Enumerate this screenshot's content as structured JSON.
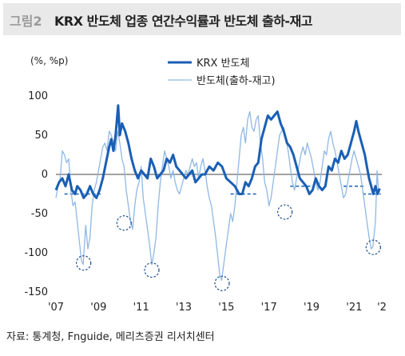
{
  "header": {
    "figure_label": "그림2",
    "title": "KRX 반도체 업종 연간수익률과 반도체 출하-재고"
  },
  "source": "자료: 통계청, Fnguide, 메리츠증권 리서치센터",
  "colors": {
    "series_primary": "#1a5fb4",
    "series_secondary": "#8fb8e6",
    "reference_dash": "#1a5fb4",
    "circle": "#1a4b8c",
    "header_bg": "#e9e9e9"
  },
  "chart_data": {
    "type": "line",
    "unit_label": "(%, %p)",
    "ylim": [
      -150,
      100
    ],
    "yticks": [
      100,
      50,
      0,
      -50,
      -100,
      -150
    ],
    "xlim": [
      2007,
      2022.3
    ],
    "xticks": [
      {
        "value": 2007,
        "label": "'07"
      },
      {
        "value": 2009,
        "label": "'09"
      },
      {
        "value": 2011,
        "label": "'11"
      },
      {
        "value": 2013,
        "label": "'13"
      },
      {
        "value": 2015,
        "label": "'15"
      },
      {
        "value": 2017,
        "label": "'17"
      },
      {
        "value": 2019,
        "label": "'19"
      },
      {
        "value": 2021,
        "label": "'21"
      },
      {
        "value": 2022.3,
        "label": "'2"
      }
    ],
    "legend": {
      "placement": "top-center"
    },
    "series": [
      {
        "name": "KRX 반도체",
        "style": "thick",
        "points": [
          [
            2007.0,
            -20
          ],
          [
            2007.15,
            -10
          ],
          [
            2007.3,
            -5
          ],
          [
            2007.45,
            -15
          ],
          [
            2007.6,
            0
          ],
          [
            2007.75,
            -20
          ],
          [
            2007.9,
            -25
          ],
          [
            2008.0,
            -15
          ],
          [
            2008.15,
            -20
          ],
          [
            2008.3,
            -30
          ],
          [
            2008.45,
            -25
          ],
          [
            2008.6,
            -15
          ],
          [
            2008.75,
            -25
          ],
          [
            2008.9,
            -30
          ],
          [
            2009.05,
            -20
          ],
          [
            2009.2,
            -5
          ],
          [
            2009.35,
            15
          ],
          [
            2009.5,
            35
          ],
          [
            2009.6,
            45
          ],
          [
            2009.7,
            30
          ],
          [
            2009.8,
            50
          ],
          [
            2009.92,
            88
          ],
          [
            2010.0,
            50
          ],
          [
            2010.1,
            65
          ],
          [
            2010.25,
            55
          ],
          [
            2010.4,
            40
          ],
          [
            2010.55,
            20
          ],
          [
            2010.7,
            5
          ],
          [
            2010.85,
            -5
          ],
          [
            2011.0,
            5
          ],
          [
            2011.15,
            0
          ],
          [
            2011.3,
            -5
          ],
          [
            2011.45,
            20
          ],
          [
            2011.6,
            10
          ],
          [
            2011.75,
            -5
          ],
          [
            2011.9,
            0
          ],
          [
            2012.05,
            5
          ],
          [
            2012.2,
            20
          ],
          [
            2012.35,
            15
          ],
          [
            2012.5,
            25
          ],
          [
            2012.65,
            10
          ],
          [
            2012.8,
            5
          ],
          [
            2012.95,
            0
          ],
          [
            2013.1,
            -5
          ],
          [
            2013.25,
            0
          ],
          [
            2013.4,
            5
          ],
          [
            2013.55,
            -10
          ],
          [
            2013.7,
            -5
          ],
          [
            2013.85,
            0
          ],
          [
            2014.0,
            0
          ],
          [
            2014.2,
            10
          ],
          [
            2014.4,
            5
          ],
          [
            2014.6,
            15
          ],
          [
            2014.8,
            10
          ],
          [
            2015.0,
            -5
          ],
          [
            2015.2,
            -10
          ],
          [
            2015.4,
            -15
          ],
          [
            2015.6,
            -25
          ],
          [
            2015.75,
            -25
          ],
          [
            2015.9,
            -10
          ],
          [
            2016.05,
            -15
          ],
          [
            2016.2,
            -5
          ],
          [
            2016.35,
            10
          ],
          [
            2016.5,
            15
          ],
          [
            2016.65,
            45
          ],
          [
            2016.8,
            60
          ],
          [
            2016.95,
            75
          ],
          [
            2017.1,
            70
          ],
          [
            2017.25,
            75
          ],
          [
            2017.4,
            80
          ],
          [
            2017.55,
            65
          ],
          [
            2017.7,
            55
          ],
          [
            2017.85,
            40
          ],
          [
            2018.0,
            35
          ],
          [
            2018.15,
            25
          ],
          [
            2018.3,
            10
          ],
          [
            2018.45,
            -5
          ],
          [
            2018.6,
            -10
          ],
          [
            2018.75,
            -15
          ],
          [
            2018.9,
            -25
          ],
          [
            2019.05,
            -20
          ],
          [
            2019.2,
            -5
          ],
          [
            2019.35,
            -15
          ],
          [
            2019.5,
            -20
          ],
          [
            2019.65,
            -15
          ],
          [
            2019.8,
            10
          ],
          [
            2019.95,
            5
          ],
          [
            2020.1,
            20
          ],
          [
            2020.25,
            15
          ],
          [
            2020.4,
            30
          ],
          [
            2020.55,
            20
          ],
          [
            2020.7,
            25
          ],
          [
            2020.85,
            40
          ],
          [
            2021.0,
            55
          ],
          [
            2021.1,
            68
          ],
          [
            2021.2,
            55
          ],
          [
            2021.35,
            40
          ],
          [
            2021.5,
            25
          ],
          [
            2021.6,
            10
          ],
          [
            2021.7,
            -5
          ],
          [
            2021.8,
            -15
          ],
          [
            2021.9,
            -25
          ],
          [
            2022.0,
            -15
          ],
          [
            2022.1,
            -25
          ],
          [
            2022.2,
            -18
          ]
        ]
      },
      {
        "name": "반도체(출하-재고)",
        "style": "thin",
        "points": [
          [
            2007.0,
            -30
          ],
          [
            2007.1,
            -15
          ],
          [
            2007.2,
            -5
          ],
          [
            2007.3,
            30
          ],
          [
            2007.4,
            25
          ],
          [
            2007.5,
            15
          ],
          [
            2007.6,
            20
          ],
          [
            2007.7,
            -20
          ],
          [
            2007.8,
            -40
          ],
          [
            2007.9,
            -35
          ],
          [
            2008.0,
            -60
          ],
          [
            2008.1,
            -85
          ],
          [
            2008.2,
            -110
          ],
          [
            2008.28,
            -115
          ],
          [
            2008.4,
            -65
          ],
          [
            2008.5,
            -95
          ],
          [
            2008.6,
            -80
          ],
          [
            2008.7,
            -40
          ],
          [
            2008.8,
            -20
          ],
          [
            2008.9,
            -10
          ],
          [
            2009.0,
            5
          ],
          [
            2009.1,
            20
          ],
          [
            2009.2,
            35
          ],
          [
            2009.3,
            40
          ],
          [
            2009.4,
            30
          ],
          [
            2009.5,
            55
          ],
          [
            2009.6,
            50
          ],
          [
            2009.7,
            40
          ],
          [
            2009.8,
            30
          ],
          [
            2009.9,
            55
          ],
          [
            2010.0,
            40
          ],
          [
            2010.1,
            20
          ],
          [
            2010.2,
            10
          ],
          [
            2010.3,
            -20
          ],
          [
            2010.4,
            -40
          ],
          [
            2010.5,
            -60
          ],
          [
            2010.6,
            -70
          ],
          [
            2010.7,
            -40
          ],
          [
            2010.8,
            -20
          ],
          [
            2010.9,
            -10
          ],
          [
            2011.0,
            10
          ],
          [
            2011.1,
            -30
          ],
          [
            2011.2,
            -50
          ],
          [
            2011.3,
            -70
          ],
          [
            2011.4,
            -90
          ],
          [
            2011.5,
            -115
          ],
          [
            2011.6,
            -100
          ],
          [
            2011.7,
            -80
          ],
          [
            2011.8,
            -40
          ],
          [
            2011.9,
            -10
          ],
          [
            2012.0,
            10
          ],
          [
            2012.1,
            30
          ],
          [
            2012.2,
            20
          ],
          [
            2012.3,
            10
          ],
          [
            2012.4,
            -5
          ],
          [
            2012.5,
            5
          ],
          [
            2012.6,
            -10
          ],
          [
            2012.7,
            -20
          ],
          [
            2012.8,
            -25
          ],
          [
            2012.9,
            -15
          ],
          [
            2013.0,
            -5
          ],
          [
            2013.1,
            5
          ],
          [
            2013.2,
            0
          ],
          [
            2013.3,
            10
          ],
          [
            2013.4,
            20
          ],
          [
            2013.5,
            10
          ],
          [
            2013.6,
            15
          ],
          [
            2013.7,
            -5
          ],
          [
            2013.8,
            10
          ],
          [
            2013.9,
            20
          ],
          [
            2014.0,
            5
          ],
          [
            2014.1,
            -15
          ],
          [
            2014.2,
            -30
          ],
          [
            2014.3,
            -40
          ],
          [
            2014.4,
            -60
          ],
          [
            2014.5,
            -80
          ],
          [
            2014.6,
            -105
          ],
          [
            2014.7,
            -130
          ],
          [
            2014.78,
            -135
          ],
          [
            2014.9,
            -110
          ],
          [
            2015.0,
            -90
          ],
          [
            2015.1,
            -70
          ],
          [
            2015.2,
            -50
          ],
          [
            2015.3,
            -60
          ],
          [
            2015.4,
            -40
          ],
          [
            2015.5,
            -10
          ],
          [
            2015.6,
            20
          ],
          [
            2015.7,
            50
          ],
          [
            2015.8,
            60
          ],
          [
            2015.9,
            40
          ],
          [
            2016.0,
            70
          ],
          [
            2016.1,
            80
          ],
          [
            2016.2,
            60
          ],
          [
            2016.3,
            55
          ],
          [
            2016.4,
            70
          ],
          [
            2016.5,
            75
          ],
          [
            2016.6,
            40
          ],
          [
            2016.7,
            20
          ],
          [
            2016.8,
            -10
          ],
          [
            2016.9,
            -20
          ],
          [
            2017.0,
            -40
          ],
          [
            2017.1,
            -30
          ],
          [
            2017.2,
            -10
          ],
          [
            2017.3,
            10
          ],
          [
            2017.4,
            30
          ],
          [
            2017.5,
            50
          ],
          [
            2017.6,
            55
          ],
          [
            2017.7,
            60
          ],
          [
            2017.8,
            45
          ],
          [
            2017.9,
            30
          ],
          [
            2018.0,
            10
          ],
          [
            2018.1,
            -10
          ],
          [
            2018.2,
            -20
          ],
          [
            2018.3,
            -5
          ],
          [
            2018.4,
            10
          ],
          [
            2018.5,
            25
          ],
          [
            2018.6,
            35
          ],
          [
            2018.7,
            25
          ],
          [
            2018.8,
            40
          ],
          [
            2018.9,
            30
          ],
          [
            2019.0,
            20
          ],
          [
            2019.1,
            5
          ],
          [
            2019.2,
            -10
          ],
          [
            2019.3,
            -20
          ],
          [
            2019.4,
            -10
          ],
          [
            2019.5,
            10
          ],
          [
            2019.6,
            30
          ],
          [
            2019.7,
            25
          ],
          [
            2019.8,
            45
          ],
          [
            2019.9,
            55
          ],
          [
            2020.0,
            40
          ],
          [
            2020.1,
            30
          ],
          [
            2020.2,
            15
          ],
          [
            2020.3,
            0
          ],
          [
            2020.4,
            -15
          ],
          [
            2020.5,
            -30
          ],
          [
            2020.6,
            -25
          ],
          [
            2020.7,
            -10
          ],
          [
            2020.8,
            5
          ],
          [
            2020.9,
            20
          ],
          [
            2021.0,
            30
          ],
          [
            2021.1,
            20
          ],
          [
            2021.2,
            10
          ],
          [
            2021.3,
            0
          ],
          [
            2021.4,
            -20
          ],
          [
            2021.5,
            -40
          ],
          [
            2021.6,
            -60
          ],
          [
            2021.7,
            -80
          ],
          [
            2021.8,
            -95
          ],
          [
            2021.88,
            -92
          ],
          [
            2022.0,
            -60
          ],
          [
            2022.08,
            5
          ],
          [
            2022.15,
            -25
          ]
        ]
      }
    ],
    "reference_lines": [
      {
        "y": -25,
        "x_start": 2007.4,
        "x_end": 2009.1
      },
      {
        "y": -25,
        "x_start": 2015.2,
        "x_end": 2016.5
      },
      {
        "y": -15,
        "x_start": 2018.0,
        "x_end": 2019.1
      },
      {
        "y": -15,
        "x_start": 2020.5,
        "x_end": 2021.5
      },
      {
        "y": -25,
        "x_start": 2021.4,
        "x_end": 2022.25
      }
    ],
    "highlight_circles": [
      {
        "x": 2008.3,
        "y": -113
      },
      {
        "x": 2010.2,
        "y": -62
      },
      {
        "x": 2011.5,
        "y": -122
      },
      {
        "x": 2014.8,
        "y": -139
      },
      {
        "x": 2017.75,
        "y": -48
      },
      {
        "x": 2021.9,
        "y": -93
      }
    ]
  }
}
